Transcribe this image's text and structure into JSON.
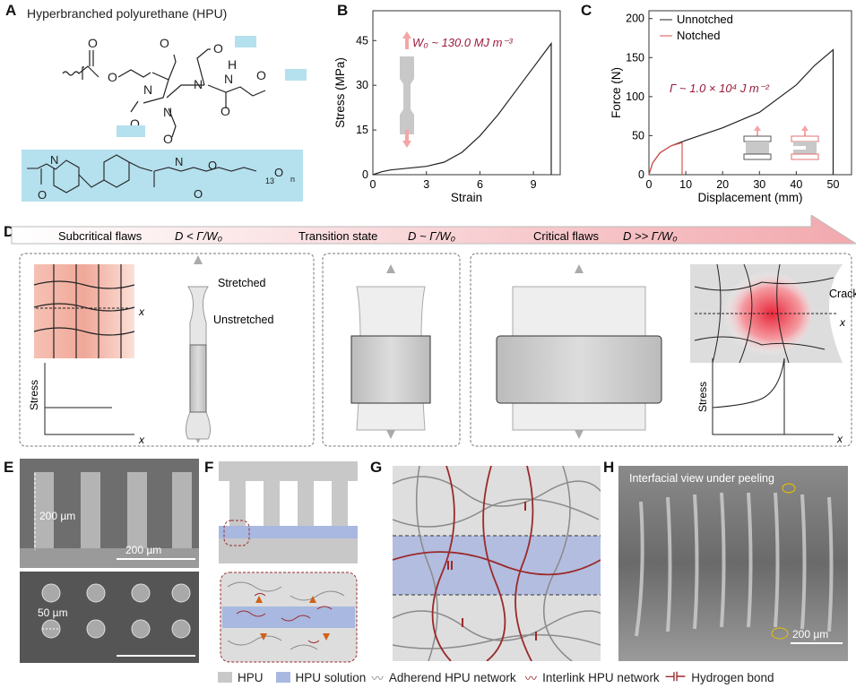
{
  "panels": {
    "A": {
      "label": "A",
      "title": "Hyperbranched polyurethane (HPU)",
      "atoms": {
        "O": "O",
        "N": "N",
        "H": "H",
        "sub13": "13",
        "subn": "n"
      }
    },
    "B": {
      "label": "B",
      "annotation": "W₀ ~ 130.0 MJ m⁻³"
    },
    "C": {
      "label": "C",
      "annotation": "Γ ~ 1.0 × 10⁴ J m⁻²"
    },
    "D": {
      "label": "D",
      "banner": [
        {
          "text": "Subcritical flaws",
          "formula": "D < Γ/W₀"
        },
        {
          "text": "Transition state",
          "formula": "D ~ Γ/W₀"
        },
        {
          "text": "Critical flaws",
          "formula": "D >> Γ/W₀"
        }
      ],
      "stretched": "Stretched",
      "unstretched": "Unstretched",
      "crack": "Crack",
      "axis_x": "x",
      "stress": "Stress"
    },
    "E": {
      "label": "E",
      "height_label": "200 µm",
      "scale_top": "200 µm",
      "diameter_label": "50 µm"
    },
    "F": {
      "label": "F"
    },
    "G": {
      "label": "G"
    },
    "H": {
      "label": "H",
      "caption": "Interfacial view under peeling",
      "scale": "200 µm"
    }
  },
  "legend": {
    "hpu": "HPU",
    "hpu_solution": "HPU solution",
    "adherend": "Adherend HPU network",
    "interlink": "Interlink HPU network",
    "hbond": "Hydrogen bond"
  },
  "colors": {
    "accent": "#9b1b3a",
    "notched": "#d9534f",
    "solution": "#a8b8e0",
    "hpu": "#c8c8c8",
    "interlink": "#9b2a2a",
    "blue_block": "#b5e0ee"
  },
  "chart_data": [
    {
      "type": "line",
      "panel": "B",
      "xlabel": "Strain",
      "ylabel": "Stress (MPa)",
      "xlim": [
        0,
        10.5
      ],
      "ylim": [
        0,
        55
      ],
      "xticks": [
        0,
        3,
        6,
        9
      ],
      "yticks": [
        0,
        15,
        30,
        45
      ],
      "grid": false,
      "series": [
        {
          "x": [
            0,
            0.5,
            1,
            2,
            3,
            4,
            5,
            6,
            7,
            8,
            9,
            10,
            10
          ],
          "y": [
            0,
            1,
            1.6,
            2.2,
            2.8,
            4.2,
            7.5,
            13,
            20,
            28,
            36,
            44,
            0
          ]
        }
      ]
    },
    {
      "type": "line",
      "panel": "C",
      "xlabel": "Displacement (mm)",
      "ylabel": "Force (N)",
      "xlim": [
        0,
        55
      ],
      "ylim": [
        0,
        210
      ],
      "xticks": [
        0,
        10,
        20,
        30,
        40,
        50
      ],
      "yticks": [
        0,
        50,
        100,
        150,
        200
      ],
      "grid": false,
      "legend_position": "top-left",
      "series": [
        {
          "name": "Unnotched",
          "color": "#222222",
          "x": [
            0,
            1,
            3,
            6,
            10,
            20,
            30,
            40,
            45,
            50,
            50
          ],
          "y": [
            0,
            15,
            28,
            37,
            44,
            60,
            80,
            115,
            140,
            160,
            0
          ]
        },
        {
          "name": "Notched",
          "color": "#d9534f",
          "x": [
            0,
            1,
            3,
            6,
            9,
            9
          ],
          "y": [
            0,
            15,
            28,
            37,
            41,
            0
          ]
        }
      ]
    }
  ]
}
